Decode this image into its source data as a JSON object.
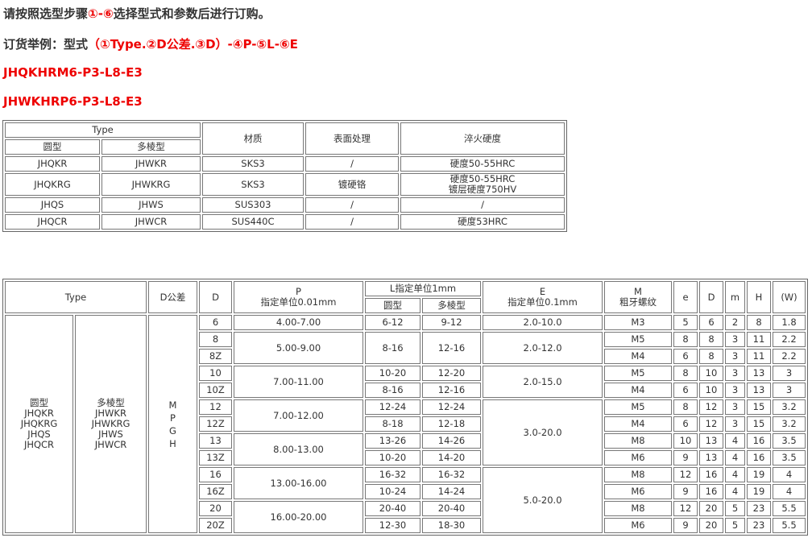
{
  "intro": {
    "line1_a": "请按照选型步骤",
    "line1_b": "①-⑥",
    "line1_c": "选择型式和参数后进行订购。",
    "line2_a": "订货举例：型式",
    "line2_b": "（①Type.②D公差.③D）-④P-⑤L-⑥E",
    "example1": "JHQKHRM6-P3-L8-E3",
    "example2": "JHWKHRP6-P3-L8-E3"
  },
  "table1": {
    "headers": {
      "type": "Type",
      "round": "圆型",
      "poly": "多棱型",
      "material": "材质",
      "surface": "表面处理",
      "hardness": "淬火硬度"
    },
    "rows": [
      {
        "round": "JHQKR",
        "poly": "JHWKR",
        "material": "SKS3",
        "surface": "/",
        "hardness": "硬度50-55HRC"
      },
      {
        "round": "JHQKRG",
        "poly": "JHWKRG",
        "material": "SKS3",
        "surface": "镀硬铬",
        "hardness": "硬度50-55HRC",
        "hardness2": "镀层硬度750HV"
      },
      {
        "round": "JHQS",
        "poly": "JHWS",
        "material": "SUS303",
        "surface": "/",
        "hardness": "/"
      },
      {
        "round": "JHQCR",
        "poly": "JHWCR",
        "material": "SUS440C",
        "surface": "/",
        "hardness": "硬度53HRC"
      }
    ]
  },
  "table2": {
    "headers": {
      "type": "Type",
      "dtol": "D公差",
      "d": "D",
      "p": "P",
      "p_unit": "指定单位0.01mm",
      "l": "L指定单位1mm",
      "l_round": "圆型",
      "l_poly": "多棱型",
      "e": "E",
      "e_unit": "指定单位0.1mm",
      "m": "M",
      "m_sub": "粗牙螺纹",
      "e2": "e",
      "d2": "D",
      "m2": "m",
      "h": "H",
      "w": "(W)"
    },
    "type_round": [
      "圆型",
      "JHQKR",
      "JHQKRG",
      "JHQS",
      "JHQCR"
    ],
    "type_poly": [
      "多棱型",
      "JHWKR",
      "JHWKRG",
      "JHWS",
      "JHWCR"
    ],
    "dtol": [
      "M",
      "P",
      "G",
      "H"
    ],
    "p_groups": [
      "4.00-7.00",
      "5.00-9.00",
      "7.00-11.00",
      "7.00-12.00",
      "8.00-13.00",
      "13.00-16.00",
      "16.00-20.00"
    ],
    "e_groups": [
      "2.0-10.0",
      "2.0-12.0",
      "2.0-15.0",
      "3.0-20.0",
      "5.0-20.0"
    ],
    "rows": [
      {
        "d": "6",
        "l_round": "6-12",
        "l_poly": "9-12",
        "thread": "M3",
        "e": "5",
        "D": "6",
        "m": "2",
        "H": "8",
        "W": "1.8"
      },
      {
        "d": "8",
        "l_round": "8-16",
        "l_poly": "12-16",
        "thread": "M5",
        "e": "8",
        "D": "8",
        "m": "3",
        "H": "11",
        "W": "2.2"
      },
      {
        "d": "8Z",
        "thread": "M4",
        "e": "6",
        "D": "8",
        "m": "3",
        "H": "11",
        "W": "2.2"
      },
      {
        "d": "10",
        "l_round": "10-20",
        "l_poly": "12-20",
        "thread": "M5",
        "e": "8",
        "D": "10",
        "m": "3",
        "H": "13",
        "W": "3"
      },
      {
        "d": "10Z",
        "l_round": "8-16",
        "l_poly": "12-16",
        "thread": "M4",
        "e": "6",
        "D": "10",
        "m": "3",
        "H": "13",
        "W": "3"
      },
      {
        "d": "12",
        "l_round": "12-24",
        "l_poly": "12-24",
        "thread": "M5",
        "e": "8",
        "D": "12",
        "m": "3",
        "H": "15",
        "W": "3.2"
      },
      {
        "d": "12Z",
        "l_round": "8-18",
        "l_poly": "12-18",
        "thread": "M4",
        "e": "6",
        "D": "12",
        "m": "3",
        "H": "15",
        "W": "3.2"
      },
      {
        "d": "13",
        "l_round": "13-26",
        "l_poly": "14-26",
        "thread": "M8",
        "e": "10",
        "D": "13",
        "m": "4",
        "H": "16",
        "W": "3.5"
      },
      {
        "d": "13Z",
        "l_round": "10-20",
        "l_poly": "14-20",
        "thread": "M6",
        "e": "9",
        "D": "13",
        "m": "4",
        "H": "16",
        "W": "3.5"
      },
      {
        "d": "16",
        "l_round": "16-32",
        "l_poly": "16-32",
        "thread": "M8",
        "e": "12",
        "D": "16",
        "m": "4",
        "H": "19",
        "W": "4"
      },
      {
        "d": "16Z",
        "l_round": "10-24",
        "l_poly": "14-24",
        "thread": "M6",
        "e": "9",
        "D": "16",
        "m": "4",
        "H": "19",
        "W": "4"
      },
      {
        "d": "20",
        "l_round": "20-40",
        "l_poly": "20-40",
        "thread": "M8",
        "e": "12",
        "D": "20",
        "m": "5",
        "H": "23",
        "W": "5.5"
      },
      {
        "d": "20Z",
        "l_round": "12-30",
        "l_poly": "18-30",
        "thread": "M6",
        "e": "9",
        "D": "20",
        "m": "5",
        "H": "23",
        "W": "5.5"
      }
    ]
  }
}
